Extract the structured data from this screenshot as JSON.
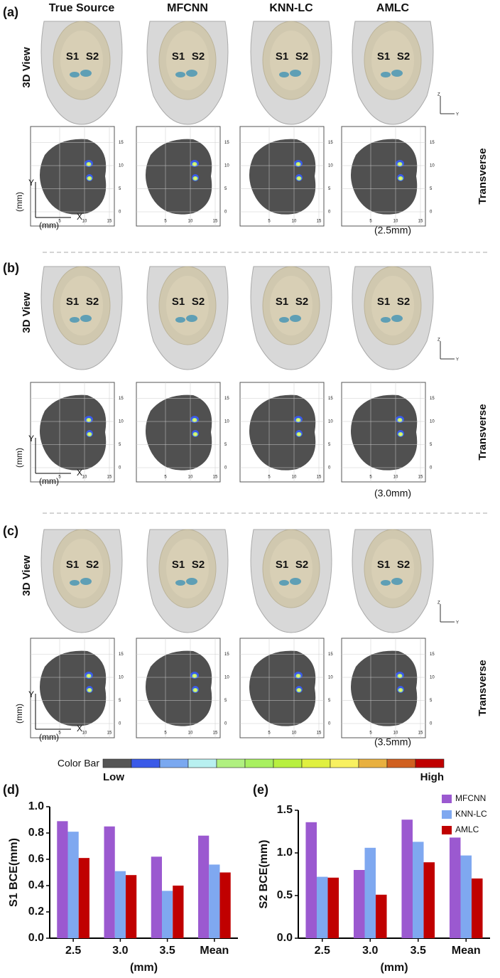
{
  "column_headers": [
    "True Source",
    "MFCNN",
    "KNN-LC",
    "AMLC"
  ],
  "rows": [
    {
      "label": "(a)",
      "depth": "(2.5mm)"
    },
    {
      "label": "(b)",
      "depth": "(3.0mm)"
    },
    {
      "label": "(c)",
      "depth": "(3.5mm)"
    }
  ],
  "view_label": "3D View",
  "slice_label": "Transverse",
  "source_labels": [
    "S1",
    "S2"
  ],
  "axis_unit": "(mm)",
  "axis_x": "X",
  "axis_y": "Y",
  "axes_3d": [
    "Z",
    "Y"
  ],
  "slice_xticks": [
    5,
    10,
    15
  ],
  "slice_yticks": [
    0,
    5,
    10,
    15
  ],
  "color_bar": {
    "label": "Color Bar",
    "low": "Low",
    "high": "High",
    "colors": [
      "#555555",
      "#3a5ae8",
      "#7aa8f0",
      "#b8f0f0",
      "#b0f080",
      "#a8f060",
      "#b8f040",
      "#e0f040",
      "#f8f060",
      "#e8b040",
      "#d06020",
      "#c00000"
    ]
  },
  "chart_data": [
    {
      "type": "bar",
      "panel": "(d)",
      "ylabel": "S1 BCE(mm)",
      "xlabel": "(mm)",
      "categories": [
        "2.5",
        "3.0",
        "3.5",
        "Mean"
      ],
      "series": [
        {
          "color": "#9b59d0",
          "values": [
            0.89,
            0.85,
            0.62,
            0.78
          ]
        },
        {
          "color": "#7fa8f0",
          "values": [
            0.81,
            0.51,
            0.36,
            0.56
          ]
        },
        {
          "color": "#c00000",
          "values": [
            0.61,
            0.48,
            0.4,
            0.5
          ]
        }
      ],
      "ylim": [
        0,
        1.0
      ],
      "yticks": [
        {
          "value": 0,
          "label": "0.0"
        },
        0.2,
        0.4,
        0.6,
        0.8,
        {
          "value": 1,
          "label": "1.0"
        }
      ]
    },
    {
      "type": "bar",
      "panel": "(e)",
      "ylabel": "S2 BCE(mm)",
      "xlabel": "(mm)",
      "categories": [
        "2.5",
        "3.0",
        "3.5",
        "Mean"
      ],
      "series": [
        {
          "name": "MFCNN",
          "color": "#9b59d0",
          "values": [
            1.36,
            0.8,
            1.39,
            1.18
          ]
        },
        {
          "name": "KNN-LC",
          "color": "#7fa8f0",
          "values": [
            0.72,
            1.06,
            1.13,
            0.97
          ]
        },
        {
          "name": "AMLC",
          "color": "#c00000",
          "values": [
            0.71,
            0.51,
            0.89,
            0.7
          ]
        }
      ],
      "ylim": [
        0,
        1.5
      ],
      "yticks": [
        {
          "value": 0,
          "label": "0.0"
        },
        0.5,
        {
          "value": 1,
          "label": "1.0"
        },
        1.5
      ],
      "legend": "upper right"
    }
  ]
}
